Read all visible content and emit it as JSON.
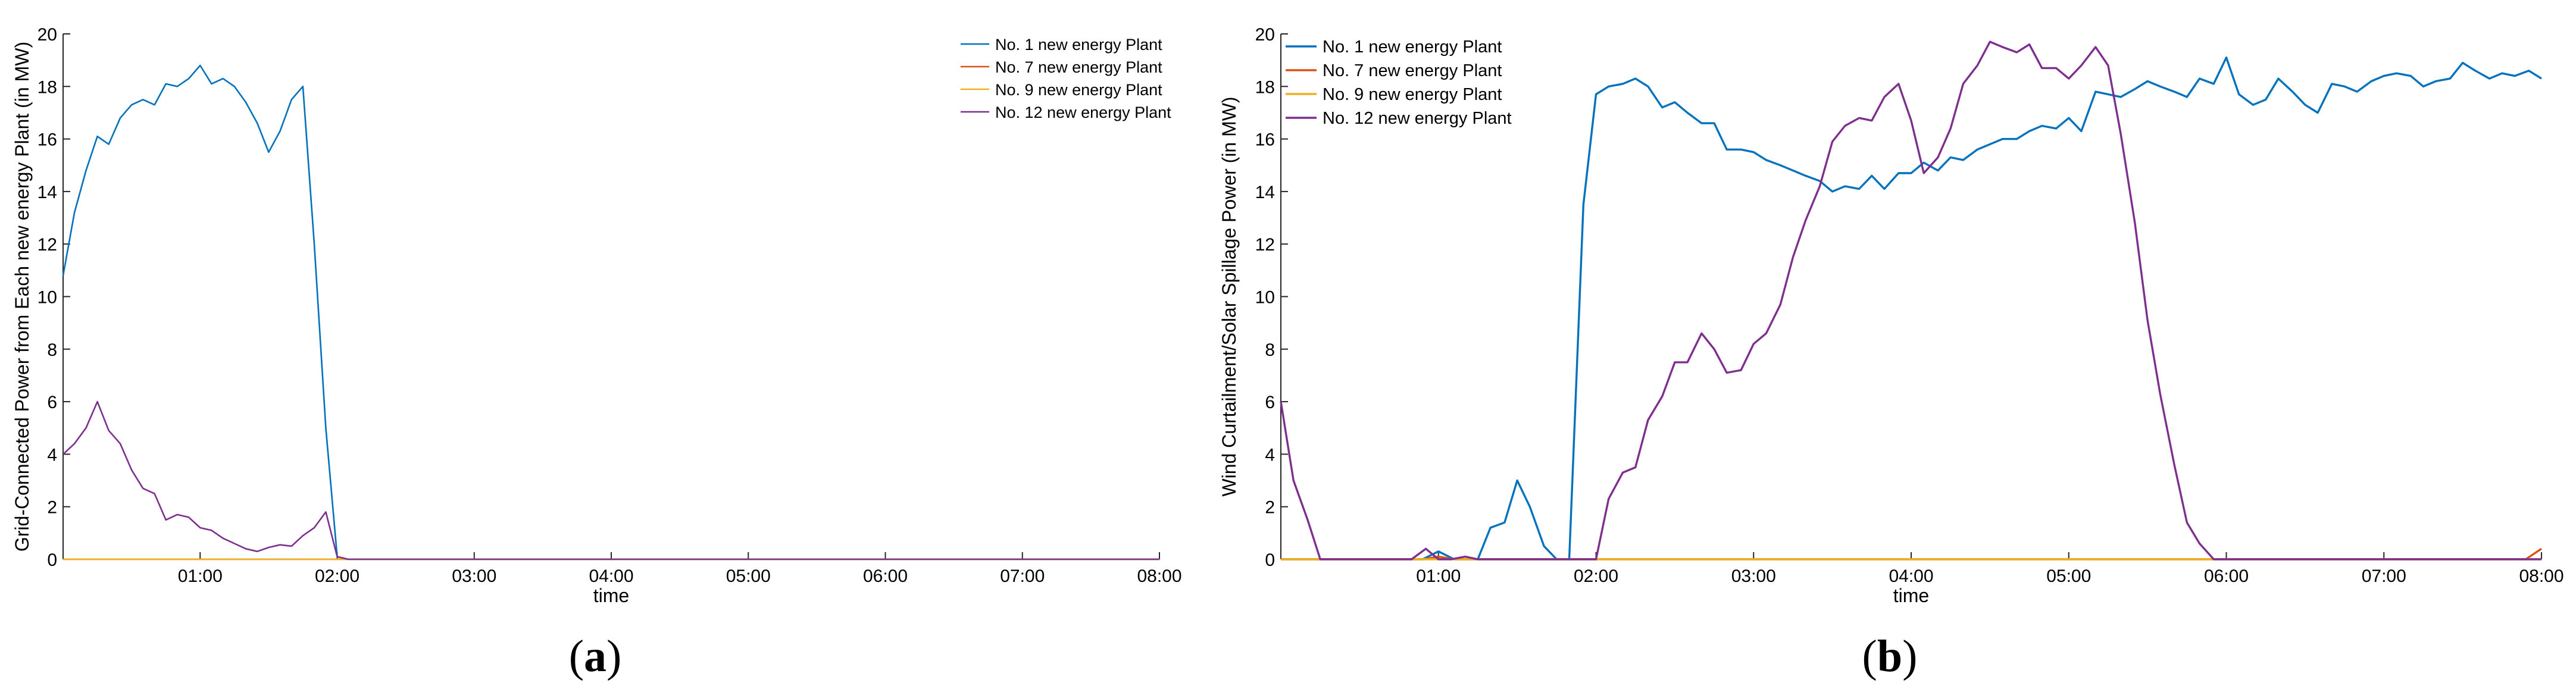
{
  "chart_data": [
    {
      "type": "line",
      "panel_label": "(a)",
      "panel_letter": "a",
      "title": "",
      "xlabel": "time",
      "ylabel": "Grid-Connected Power from Each new energy Plant (in MW)",
      "xlim": [
        0,
        8
      ],
      "ylim": [
        0,
        20
      ],
      "x_ticks": [
        1,
        2,
        3,
        4,
        5,
        6,
        7,
        8
      ],
      "x_tick_labels": [
        "01:00",
        "02:00",
        "03:00",
        "04:00",
        "05:00",
        "06:00",
        "07:00",
        "08:00"
      ],
      "y_ticks": [
        0,
        2,
        4,
        6,
        8,
        10,
        12,
        14,
        16,
        18,
        20
      ],
      "y_tick_labels": [
        "0",
        "2",
        "4",
        "6",
        "8",
        "10",
        "12",
        "14",
        "16",
        "18",
        "20"
      ],
      "legend_position": "top-right",
      "series": [
        {
          "name": "No. 1 new energy Plant",
          "color": "#0072BD",
          "points": [
            [
              0,
              10.8
            ],
            [
              0.083,
              13.2
            ],
            [
              0.167,
              14.8
            ],
            [
              0.25,
              16.1
            ],
            [
              0.333,
              15.8
            ],
            [
              0.417,
              16.8
            ],
            [
              0.5,
              17.3
            ],
            [
              0.583,
              17.5
            ],
            [
              0.667,
              17.3
            ],
            [
              0.75,
              18.1
            ],
            [
              0.833,
              18.0
            ],
            [
              0.917,
              18.3
            ],
            [
              1.0,
              18.8
            ],
            [
              1.083,
              18.1
            ],
            [
              1.167,
              18.3
            ],
            [
              1.25,
              18.0
            ],
            [
              1.333,
              17.4
            ],
            [
              1.417,
              16.6
            ],
            [
              1.5,
              15.5
            ],
            [
              1.583,
              16.3
            ],
            [
              1.667,
              17.5
            ],
            [
              1.75,
              18.0
            ],
            [
              1.833,
              12.0
            ],
            [
              1.917,
              5.0
            ],
            [
              2.0,
              0.1
            ],
            [
              2.08,
              0
            ],
            [
              8.0,
              0
            ]
          ]
        },
        {
          "name": "No. 7 new energy Plant",
          "color": "#D95319",
          "points": [
            [
              0,
              0
            ],
            [
              8.0,
              0
            ]
          ]
        },
        {
          "name": "No. 9 new energy Plant",
          "color": "#EDB120",
          "points": [
            [
              0,
              0
            ],
            [
              8.0,
              0
            ]
          ]
        },
        {
          "name": "No. 12 new energy Plant",
          "color": "#7E2F8E",
          "points": [
            [
              0,
              4.0
            ],
            [
              0.083,
              4.4
            ],
            [
              0.167,
              5.0
            ],
            [
              0.25,
              6.0
            ],
            [
              0.333,
              4.9
            ],
            [
              0.417,
              4.4
            ],
            [
              0.5,
              3.4
            ],
            [
              0.583,
              2.7
            ],
            [
              0.667,
              2.5
            ],
            [
              0.75,
              1.5
            ],
            [
              0.833,
              1.7
            ],
            [
              0.917,
              1.6
            ],
            [
              1.0,
              1.2
            ],
            [
              1.083,
              1.1
            ],
            [
              1.167,
              0.8
            ],
            [
              1.25,
              0.6
            ],
            [
              1.333,
              0.4
            ],
            [
              1.417,
              0.3
            ],
            [
              1.5,
              0.45
            ],
            [
              1.583,
              0.55
            ],
            [
              1.667,
              0.5
            ],
            [
              1.75,
              0.9
            ],
            [
              1.833,
              1.2
            ],
            [
              1.917,
              1.8
            ],
            [
              2.0,
              0.1
            ],
            [
              2.08,
              0
            ],
            [
              8.0,
              0
            ]
          ]
        }
      ]
    },
    {
      "type": "line",
      "panel_label": "(b)",
      "panel_letter": "b",
      "title": "",
      "xlabel": "time",
      "ylabel": "Wind Curtailment/Solar Spillage Power (in MW)",
      "xlim": [
        0,
        8
      ],
      "ylim": [
        0,
        20
      ],
      "x_ticks": [
        1,
        2,
        3,
        4,
        5,
        6,
        7,
        8
      ],
      "x_tick_labels": [
        "01:00",
        "02:00",
        "03:00",
        "04:00",
        "05:00",
        "06:00",
        "07:00",
        "08:00"
      ],
      "y_ticks": [
        0,
        2,
        4,
        6,
        8,
        10,
        12,
        14,
        16,
        18,
        20
      ],
      "y_tick_labels": [
        "0",
        "2",
        "4",
        "6",
        "8",
        "10",
        "12",
        "14",
        "16",
        "18",
        "20"
      ],
      "legend_position": "top-left",
      "series": [
        {
          "name": "No. 1 new energy Plant",
          "color": "#0072BD",
          "points": [
            [
              0,
              0
            ],
            [
              0.9,
              0
            ],
            [
              1.0,
              0.3
            ],
            [
              1.1,
              0
            ],
            [
              1.25,
              0
            ],
            [
              1.33,
              1.2
            ],
            [
              1.42,
              1.4
            ],
            [
              1.5,
              3.0
            ],
            [
              1.58,
              2.0
            ],
            [
              1.67,
              0.5
            ],
            [
              1.75,
              0
            ],
            [
              1.83,
              0
            ],
            [
              1.92,
              13.5
            ],
            [
              2.0,
              17.7
            ],
            [
              2.08,
              18.0
            ],
            [
              2.17,
              18.1
            ],
            [
              2.25,
              18.3
            ],
            [
              2.33,
              18.0
            ],
            [
              2.42,
              17.2
            ],
            [
              2.5,
              17.4
            ],
            [
              2.58,
              17.0
            ],
            [
              2.67,
              16.6
            ],
            [
              2.75,
              16.6
            ],
            [
              2.83,
              15.6
            ],
            [
              2.92,
              15.6
            ],
            [
              3.0,
              15.5
            ],
            [
              3.08,
              15.2
            ],
            [
              3.17,
              15.0
            ],
            [
              3.25,
              14.8
            ],
            [
              3.33,
              14.6
            ],
            [
              3.42,
              14.4
            ],
            [
              3.5,
              14.0
            ],
            [
              3.58,
              14.2
            ],
            [
              3.67,
              14.1
            ],
            [
              3.75,
              14.6
            ],
            [
              3.83,
              14.1
            ],
            [
              3.92,
              14.7
            ],
            [
              4.0,
              14.7
            ],
            [
              4.08,
              15.1
            ],
            [
              4.17,
              14.8
            ],
            [
              4.25,
              15.3
            ],
            [
              4.33,
              15.2
            ],
            [
              4.42,
              15.6
            ],
            [
              4.5,
              15.8
            ],
            [
              4.58,
              16.0
            ],
            [
              4.67,
              16.0
            ],
            [
              4.75,
              16.3
            ],
            [
              4.83,
              16.5
            ],
            [
              4.92,
              16.4
            ],
            [
              5.0,
              16.8
            ],
            [
              5.08,
              16.3
            ],
            [
              5.17,
              17.8
            ],
            [
              5.25,
              17.7
            ],
            [
              5.33,
              17.6
            ],
            [
              5.42,
              17.9
            ],
            [
              5.5,
              18.2
            ],
            [
              5.58,
              18.0
            ],
            [
              5.67,
              17.8
            ],
            [
              5.75,
              17.6
            ],
            [
              5.83,
              18.3
            ],
            [
              5.92,
              18.1
            ],
            [
              6.0,
              19.1
            ],
            [
              6.08,
              17.7
            ],
            [
              6.17,
              17.3
            ],
            [
              6.25,
              17.5
            ],
            [
              6.33,
              18.3
            ],
            [
              6.42,
              17.8
            ],
            [
              6.5,
              17.3
            ],
            [
              6.58,
              17.0
            ],
            [
              6.67,
              18.1
            ],
            [
              6.75,
              18.0
            ],
            [
              6.83,
              17.8
            ],
            [
              6.92,
              18.2
            ],
            [
              7.0,
              18.4
            ],
            [
              7.08,
              18.5
            ],
            [
              7.17,
              18.4
            ],
            [
              7.25,
              18.0
            ],
            [
              7.33,
              18.2
            ],
            [
              7.42,
              18.3
            ],
            [
              7.5,
              18.9
            ],
            [
              7.58,
              18.6
            ],
            [
              7.67,
              18.3
            ],
            [
              7.75,
              18.5
            ],
            [
              7.83,
              18.4
            ],
            [
              7.92,
              18.6
            ],
            [
              8.0,
              18.3
            ]
          ]
        },
        {
          "name": "No. 7 new energy Plant",
          "color": "#D95319",
          "points": [
            [
              0,
              0
            ],
            [
              0.9,
              0
            ],
            [
              1.0,
              0.1
            ],
            [
              1.1,
              0
            ],
            [
              7.9,
              0
            ],
            [
              8.0,
              0.4
            ]
          ]
        },
        {
          "name": "No. 9 new energy Plant",
          "color": "#EDB120",
          "points": [
            [
              0,
              0
            ],
            [
              8.0,
              0
            ]
          ]
        },
        {
          "name": "No. 12 new energy Plant",
          "color": "#7E2F8E",
          "points": [
            [
              0,
              6.0
            ],
            [
              0.08,
              3.0
            ],
            [
              0.17,
              1.5
            ],
            [
              0.25,
              0
            ],
            [
              0.33,
              0
            ],
            [
              0.5,
              0
            ],
            [
              0.58,
              0
            ],
            [
              0.67,
              0
            ],
            [
              0.75,
              0
            ],
            [
              0.83,
              0
            ],
            [
              0.92,
              0.4
            ],
            [
              1.0,
              0
            ],
            [
              1.08,
              0
            ],
            [
              1.17,
              0.1
            ],
            [
              1.25,
              0
            ],
            [
              1.67,
              0
            ],
            [
              1.75,
              0
            ],
            [
              1.83,
              0
            ],
            [
              1.92,
              0
            ],
            [
              2.0,
              0
            ],
            [
              2.08,
              2.3
            ],
            [
              2.17,
              3.3
            ],
            [
              2.25,
              3.5
            ],
            [
              2.33,
              5.3
            ],
            [
              2.42,
              6.2
            ],
            [
              2.5,
              7.5
            ],
            [
              2.58,
              7.5
            ],
            [
              2.67,
              8.6
            ],
            [
              2.75,
              8.0
            ],
            [
              2.83,
              7.1
            ],
            [
              2.92,
              7.2
            ],
            [
              3.0,
              8.2
            ],
            [
              3.08,
              8.6
            ],
            [
              3.17,
              9.7
            ],
            [
              3.25,
              11.5
            ],
            [
              3.33,
              12.9
            ],
            [
              3.42,
              14.2
            ],
            [
              3.5,
              15.9
            ],
            [
              3.58,
              16.5
            ],
            [
              3.67,
              16.8
            ],
            [
              3.75,
              16.7
            ],
            [
              3.83,
              17.6
            ],
            [
              3.92,
              18.1
            ],
            [
              4.0,
              16.7
            ],
            [
              4.08,
              14.7
            ],
            [
              4.17,
              15.3
            ],
            [
              4.25,
              16.4
            ],
            [
              4.33,
              18.1
            ],
            [
              4.42,
              18.8
            ],
            [
              4.5,
              19.7
            ],
            [
              4.58,
              19.5
            ],
            [
              4.67,
              19.3
            ],
            [
              4.75,
              19.6
            ],
            [
              4.83,
              18.7
            ],
            [
              4.92,
              18.7
            ],
            [
              5.0,
              18.3
            ],
            [
              5.08,
              18.8
            ],
            [
              5.17,
              19.5
            ],
            [
              5.25,
              18.8
            ],
            [
              5.33,
              16.2
            ],
            [
              5.42,
              12.8
            ],
            [
              5.5,
              9.1
            ],
            [
              5.58,
              6.3
            ],
            [
              5.67,
              3.6
            ],
            [
              5.75,
              1.4
            ],
            [
              5.83,
              0.6
            ],
            [
              5.92,
              0
            ],
            [
              6.0,
              0
            ],
            [
              8.0,
              0
            ]
          ]
        }
      ]
    }
  ]
}
